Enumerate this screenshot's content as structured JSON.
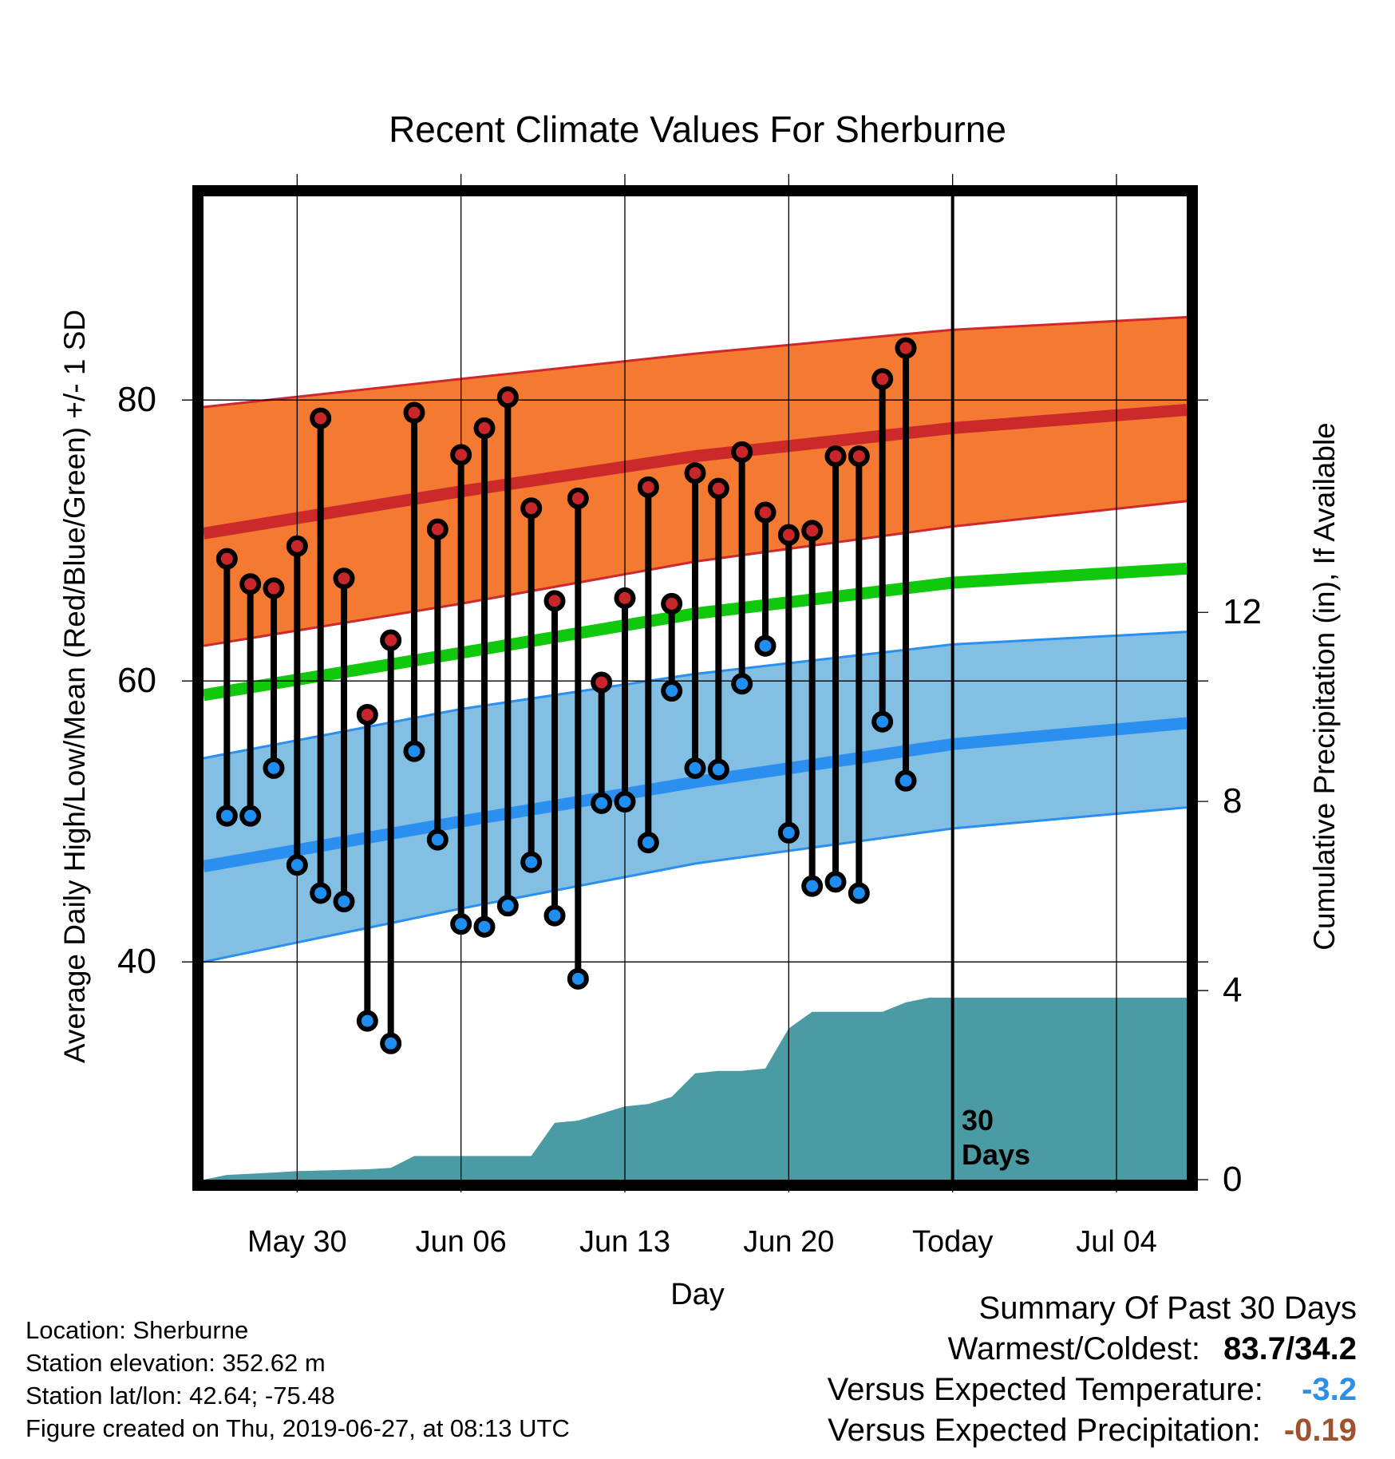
{
  "chart_data": {
    "type": "line",
    "title": "Recent Climate Values For Sherburne",
    "xlabel": "Day",
    "ylabel": "Average Daily High/Low/Mean (Red/Blue/Green) +/- 1 SD",
    "y2label": "Cumulative Precipitation (in), If Available",
    "xlim": [
      "2019-05-26",
      "2019-07-07"
    ],
    "ylim": [
      24.5,
      94.5
    ],
    "y_ticks": [
      40,
      60,
      80
    ],
    "y2lim": [
      0,
      20.8
    ],
    "y2_ticks": [
      0,
      4,
      8,
      12
    ],
    "x_ticks": [
      {
        "date": "2019-05-30",
        "label": "May 30"
      },
      {
        "date": "2019-06-06",
        "label": "Jun 06"
      },
      {
        "date": "2019-06-13",
        "label": "Jun 13"
      },
      {
        "date": "2019-06-20",
        "label": "Jun 20"
      },
      {
        "date": "2019-06-27",
        "label": "Today"
      },
      {
        "date": "2019-07-04",
        "label": "Jul 04"
      }
    ],
    "today": {
      "date": "2019-06-27",
      "label_line1": "30",
      "label_line2": "Days"
    },
    "grid": true,
    "normals": {
      "x": [
        "2019-05-26",
        "2019-06-06",
        "2019-06-16",
        "2019-06-27",
        "2019-07-07"
      ],
      "high_mean": [
        70.5,
        73.5,
        76.0,
        78.0,
        79.3
      ],
      "high_plus_sd": [
        79.5,
        81.5,
        83.3,
        85.0,
        85.9
      ],
      "high_minus_sd": [
        62.5,
        65.5,
        68.5,
        71.0,
        72.8
      ],
      "mean": [
        59.0,
        62.0,
        64.8,
        67.0,
        68.0
      ],
      "low_mean": [
        46.8,
        50.0,
        52.8,
        55.5,
        57.0
      ],
      "low_plus_sd": [
        54.5,
        58.0,
        60.5,
        62.6,
        63.5
      ],
      "low_minus_sd": [
        40.0,
        43.8,
        47.0,
        49.5,
        51.0
      ]
    },
    "series": [
      {
        "name": "Daily High",
        "color": "#c8262a",
        "x": [
          "2019-05-27",
          "2019-05-28",
          "2019-05-29",
          "2019-05-30",
          "2019-05-31",
          "2019-06-01",
          "2019-06-02",
          "2019-06-03",
          "2019-06-04",
          "2019-06-05",
          "2019-06-06",
          "2019-06-07",
          "2019-06-08",
          "2019-06-09",
          "2019-06-10",
          "2019-06-11",
          "2019-06-12",
          "2019-06-13",
          "2019-06-14",
          "2019-06-15",
          "2019-06-16",
          "2019-06-17",
          "2019-06-18",
          "2019-06-19",
          "2019-06-20",
          "2019-06-21",
          "2019-06-22",
          "2019-06-23",
          "2019-06-24",
          "2019-06-25",
          "2019-06-26"
        ],
        "values": [
          68.7,
          66.9,
          66.6,
          69.6,
          78.7,
          67.3,
          57.6,
          62.9,
          79.1,
          70.8,
          76.1,
          78.0,
          80.2,
          72.3,
          65.7,
          73.0,
          59.9,
          65.9,
          73.8,
          65.5,
          74.8,
          73.7,
          76.3,
          72.0,
          70.4,
          70.7,
          76.0,
          76.0,
          81.5,
          83.7,
          null
        ]
      },
      {
        "name": "Daily Low",
        "color": "#1f8ef1",
        "x": [
          "2019-05-27",
          "2019-05-28",
          "2019-05-29",
          "2019-05-30",
          "2019-05-31",
          "2019-06-01",
          "2019-06-02",
          "2019-06-03",
          "2019-06-04",
          "2019-06-05",
          "2019-06-06",
          "2019-06-07",
          "2019-06-08",
          "2019-06-09",
          "2019-06-10",
          "2019-06-11",
          "2019-06-12",
          "2019-06-13",
          "2019-06-14",
          "2019-06-15",
          "2019-06-16",
          "2019-06-17",
          "2019-06-18",
          "2019-06-19",
          "2019-06-20",
          "2019-06-21",
          "2019-06-22",
          "2019-06-23",
          "2019-06-24",
          "2019-06-25",
          "2019-06-26"
        ],
        "values": [
          50.4,
          50.4,
          53.8,
          46.9,
          44.9,
          44.3,
          35.8,
          34.2,
          55.0,
          48.7,
          42.7,
          42.5,
          44.0,
          47.1,
          43.3,
          38.8,
          51.3,
          51.4,
          48.5,
          59.3,
          53.8,
          53.7,
          59.8,
          62.5,
          49.2,
          45.4,
          45.7,
          44.9,
          57.1,
          52.9,
          null
        ]
      }
    ],
    "precip": {
      "name": "Cumulative Precipitation",
      "color": "#4a9ba3",
      "x": [
        "2019-05-26",
        "2019-05-27",
        "2019-05-29",
        "2019-05-30",
        "2019-06-02",
        "2019-06-03",
        "2019-06-04",
        "2019-06-09",
        "2019-06-10",
        "2019-06-11",
        "2019-06-12",
        "2019-06-13",
        "2019-06-14",
        "2019-06-15",
        "2019-06-16",
        "2019-06-17",
        "2019-06-18",
        "2019-06-19",
        "2019-06-20",
        "2019-06-21",
        "2019-06-22",
        "2019-06-23",
        "2019-06-24",
        "2019-06-25",
        "2019-06-26",
        "2019-06-27",
        "2019-07-07"
      ],
      "values": [
        0.0,
        0.1,
        0.15,
        0.18,
        0.22,
        0.25,
        0.5,
        0.5,
        1.2,
        1.25,
        1.4,
        1.55,
        1.6,
        1.75,
        2.25,
        2.3,
        2.3,
        2.35,
        3.2,
        3.55,
        3.55,
        3.55,
        3.55,
        3.75,
        3.85,
        3.85,
        3.85
      ]
    }
  },
  "info": {
    "location": "Location: Sherburne",
    "elevation": "Station elevation: 352.62 m",
    "latlon": "Station lat/lon: 42.64; -75.48",
    "created": "Figure created on Thu, 2019-06-27, at 08:13 UTC"
  },
  "summary": {
    "heading": "Summary Of Past 30 Days",
    "warmest_label": "Warmest/Coldest:",
    "warmest_value": "83.7/34.2",
    "temp_label": "Versus Expected Temperature:",
    "temp_value": "-3.2",
    "temp_color": "#2e8fe6",
    "precip_label": "Versus Expected Precipitation:",
    "precip_value": "-0.19",
    "precip_color": "#a0522d"
  }
}
